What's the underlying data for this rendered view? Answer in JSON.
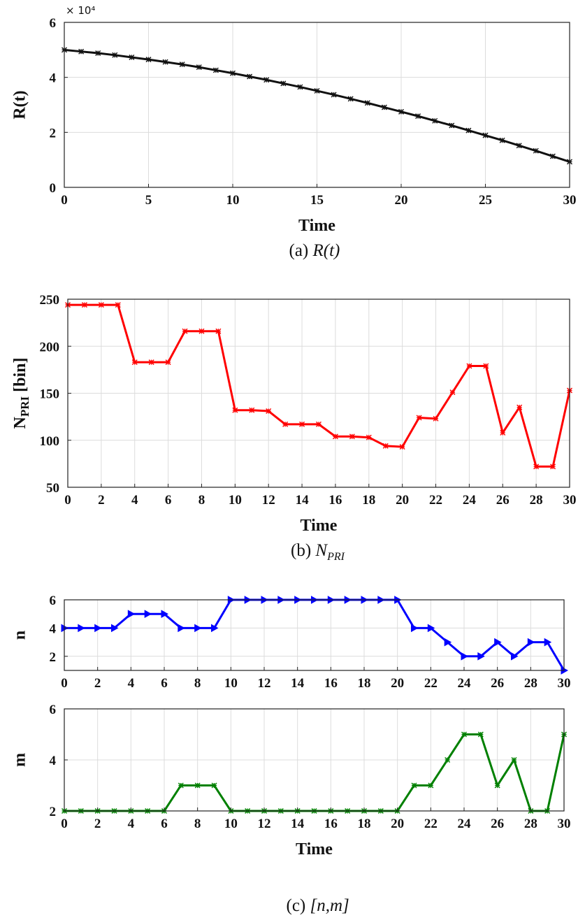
{
  "chart_data": [
    {
      "type": "line",
      "panel": "a",
      "caption": {
        "prefix": "(a)",
        "math": "R(t)"
      },
      "xlabel": "Time",
      "ylabel": "R(t)",
      "y_multiplier": "× 10⁴",
      "xlim": [
        0,
        30
      ],
      "ylim": [
        0,
        6
      ],
      "xticks": [
        0,
        5,
        10,
        15,
        20,
        25,
        30
      ],
      "yticks": [
        0,
        2,
        4,
        6
      ],
      "grid": true,
      "series": [
        {
          "color": "#111111",
          "marker": "asterisk",
          "x": [
            0,
            1,
            2,
            3,
            4,
            5,
            6,
            7,
            8,
            9,
            10,
            11,
            12,
            13,
            14,
            15,
            16,
            17,
            18,
            19,
            20,
            21,
            22,
            23,
            24,
            25,
            26,
            27,
            28,
            29,
            30
          ],
          "y": [
            5.0,
            4.94,
            4.88,
            4.81,
            4.73,
            4.65,
            4.56,
            4.47,
            4.37,
            4.26,
            4.15,
            4.03,
            3.91,
            3.78,
            3.65,
            3.51,
            3.37,
            3.22,
            3.07,
            2.91,
            2.75,
            2.59,
            2.42,
            2.25,
            2.07,
            1.89,
            1.71,
            1.52,
            1.33,
            1.13,
            0.93
          ]
        }
      ]
    },
    {
      "type": "line",
      "panel": "b",
      "caption": {
        "prefix": "(b)",
        "math_main": "N",
        "math_sub": "PRI"
      },
      "xlabel": "Time",
      "ylabel": {
        "main": "N",
        "sub": "PRI",
        "suffix": " [bin]"
      },
      "xlim": [
        0,
        30
      ],
      "ylim": [
        50,
        250
      ],
      "xticks": [
        0,
        2,
        4,
        6,
        8,
        10,
        12,
        14,
        16,
        18,
        20,
        22,
        24,
        26,
        28,
        30
      ],
      "yticks": [
        50,
        100,
        150,
        200,
        250
      ],
      "grid": true,
      "series": [
        {
          "color": "#ff0000",
          "marker": "asterisk",
          "x": [
            0,
            1,
            2,
            3,
            4,
            5,
            6,
            7,
            8,
            9,
            10,
            11,
            12,
            13,
            14,
            15,
            16,
            17,
            18,
            19,
            20,
            21,
            22,
            23,
            24,
            25,
            26,
            27,
            28,
            29,
            30
          ],
          "y": [
            244,
            244,
            244,
            244,
            183,
            183,
            183,
            216,
            216,
            216,
            132,
            132,
            131,
            117,
            117,
            117,
            104,
            104,
            103,
            94,
            93,
            124,
            123,
            151,
            179,
            179,
            108,
            135,
            72,
            72,
            153
          ]
        }
      ]
    },
    {
      "type": "line",
      "panel": "c-top",
      "ylabel": "n",
      "xlim": [
        0,
        30
      ],
      "ylim": [
        1,
        6
      ],
      "xticks": [
        0,
        2,
        4,
        6,
        8,
        10,
        12,
        14,
        16,
        18,
        20,
        22,
        24,
        26,
        28,
        30
      ],
      "yticks": [
        2,
        4,
        6
      ],
      "grid": true,
      "series": [
        {
          "color": "#0000ff",
          "marker": "triangle-right",
          "x": [
            0,
            1,
            2,
            3,
            4,
            5,
            6,
            7,
            8,
            9,
            10,
            11,
            12,
            13,
            14,
            15,
            16,
            17,
            18,
            19,
            20,
            21,
            22,
            23,
            24,
            25,
            26,
            27,
            28,
            29,
            30
          ],
          "y": [
            4,
            4,
            4,
            4,
            5,
            5,
            5,
            4,
            4,
            4,
            6,
            6,
            6,
            6,
            6,
            6,
            6,
            6,
            6,
            6,
            6,
            4,
            4,
            3,
            2,
            2,
            3,
            2,
            3,
            3,
            1
          ]
        }
      ]
    },
    {
      "type": "line",
      "panel": "c-bottom",
      "caption": {
        "prefix": "(c)",
        "math": "[n,m]"
      },
      "xlabel": "Time",
      "ylabel": "m",
      "xlim": [
        0,
        30
      ],
      "ylim": [
        2,
        6
      ],
      "xticks": [
        0,
        2,
        4,
        6,
        8,
        10,
        12,
        14,
        16,
        18,
        20,
        22,
        24,
        26,
        28,
        30
      ],
      "yticks": [
        2,
        4,
        6
      ],
      "grid": true,
      "series": [
        {
          "color": "#008000",
          "marker": "asterisk",
          "x": [
            0,
            1,
            2,
            3,
            4,
            5,
            6,
            7,
            8,
            9,
            10,
            11,
            12,
            13,
            14,
            15,
            16,
            17,
            18,
            19,
            20,
            21,
            22,
            23,
            24,
            25,
            26,
            27,
            28,
            29,
            30
          ],
          "y": [
            2,
            2,
            2,
            2,
            2,
            2,
            2,
            3,
            3,
            3,
            2,
            2,
            2,
            2,
            2,
            2,
            2,
            2,
            2,
            2,
            2,
            3,
            3,
            4,
            5,
            5,
            3,
            4,
            2,
            2,
            5
          ]
        }
      ]
    }
  ]
}
